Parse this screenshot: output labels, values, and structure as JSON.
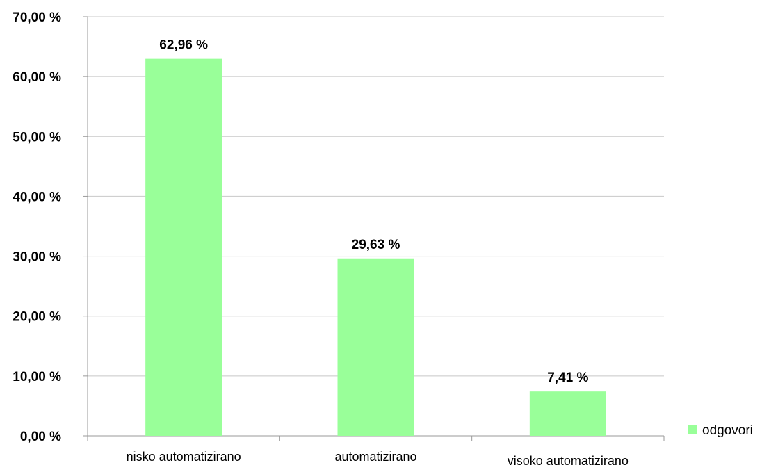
{
  "chart_data": {
    "type": "bar",
    "categories": [
      "nisko automatizirano",
      "automatizirano",
      "visoko automatizirano"
    ],
    "series": [
      {
        "name": "odgovori",
        "values": [
          62.96,
          29.63,
          7.41
        ],
        "data_labels": [
          "62,96 %",
          "29,63 %",
          "7,41 %"
        ],
        "color": "#99ff99"
      }
    ],
    "y_ticks": [
      {
        "value": 0,
        "label": "0,00 %"
      },
      {
        "value": 10,
        "label": "10,00 %"
      },
      {
        "value": 20,
        "label": "20,00 %"
      },
      {
        "value": 30,
        "label": "30,00 %"
      },
      {
        "value": 40,
        "label": "40,00 %"
      },
      {
        "value": 50,
        "label": "50,00 %"
      },
      {
        "value": 60,
        "label": "60,00 %"
      },
      {
        "value": 70,
        "label": "70,00 %"
      }
    ],
    "ylim": [
      0,
      70
    ],
    "grid": true,
    "gridline_color": "#c8c8c8",
    "legend_position": "bottom-right",
    "title": "",
    "xlabel": "",
    "ylabel": ""
  }
}
